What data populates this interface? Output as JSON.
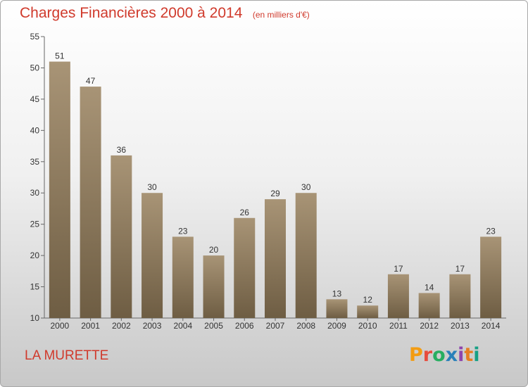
{
  "chart_data": {
    "type": "bar",
    "title": "Charges Financières 2000 à 2014",
    "subtitle": "(en milliers d'€)",
    "categories": [
      "2000",
      "2001",
      "2002",
      "2003",
      "2004",
      "2005",
      "2006",
      "2007",
      "2008",
      "2009",
      "2010",
      "2011",
      "2012",
      "2013",
      "2014"
    ],
    "values": [
      51,
      47,
      36,
      30,
      23,
      20,
      26,
      29,
      30,
      13,
      12,
      17,
      14,
      17,
      23
    ],
    "ylim": [
      10,
      55
    ],
    "yticks": [
      10,
      15,
      20,
      25,
      30,
      35,
      40,
      45,
      50,
      55
    ],
    "grid": false,
    "bar_color": "#8c7a5e"
  },
  "commune": "LA MURETTE",
  "logo": {
    "letters": [
      "P",
      "r",
      "o",
      "x",
      "i",
      "t",
      "i"
    ],
    "colors": [
      "#f39c12",
      "#e74c3c",
      "#27ae60",
      "#2980b9",
      "#8e44ad",
      "#e67e22",
      "#16a085"
    ]
  }
}
